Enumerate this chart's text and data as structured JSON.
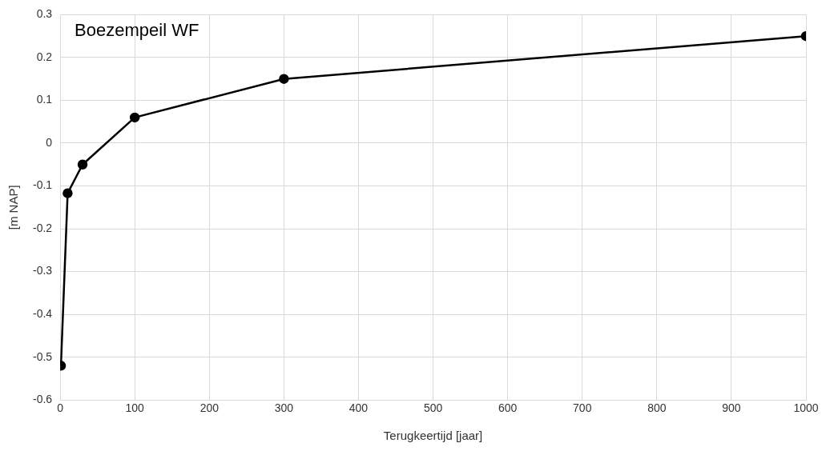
{
  "chart_data": {
    "type": "line",
    "title": "Boezempeil WF",
    "xlabel": "Terugkeertijd [jaar]",
    "ylabel": "[m NAP]",
    "x": [
      1,
      10,
      30,
      100,
      300,
      1000
    ],
    "series": [
      {
        "color": "#000000",
        "values": [
          -0.52,
          -0.117,
          -0.05,
          0.06,
          0.15,
          0.25
        ]
      }
    ],
    "xlim": [
      0,
      1000
    ],
    "xticks": [
      0,
      100,
      200,
      300,
      400,
      500,
      600,
      700,
      800,
      900,
      1000
    ],
    "ylim": [
      -0.6,
      0.3
    ],
    "yticks": [
      -0.6,
      -0.5,
      -0.4,
      -0.3,
      -0.2,
      -0.1,
      0,
      0.1,
      0.2,
      0.3
    ],
    "grid": true,
    "legend": false,
    "marker": "circle",
    "line_style": "solid"
  }
}
